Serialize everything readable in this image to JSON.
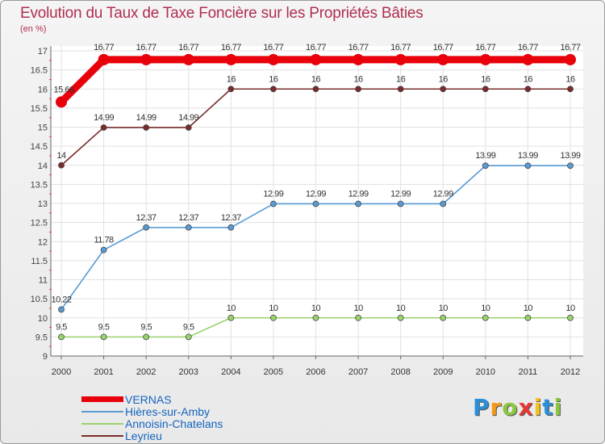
{
  "header": {
    "title": "Evolution du Taux de Taxe Foncière sur les Propriétés Bâties",
    "unit": "(en %)"
  },
  "chart_data": {
    "type": "line",
    "title": "Evolution du Taux de Taxe Foncière sur les Propriétés Bâties",
    "ylabel": "(en %)",
    "xlabel": "",
    "x": [
      "2000",
      "2001",
      "2002",
      "2003",
      "2004",
      "2005",
      "2006",
      "2007",
      "2008",
      "2009",
      "2010",
      "2011",
      "2012"
    ],
    "ylim": [
      9,
      17
    ],
    "yticks": [
      "9",
      "9.5",
      "10",
      "10.5",
      "11",
      "11.5",
      "12",
      "12.5",
      "13",
      "13.5",
      "14",
      "14.5",
      "15",
      "15.5",
      "16",
      "16.5",
      "17"
    ],
    "series": [
      {
        "name": "VERNAS",
        "color": "#e8000b",
        "values": [
          15.66,
          16.77,
          16.77,
          16.77,
          16.77,
          16.77,
          16.77,
          16.77,
          16.77,
          16.77,
          16.77,
          16.77,
          16.77
        ],
        "labels": [
          "15.66",
          "16.77",
          "16.77",
          "16.77",
          "16.77",
          "16.77",
          "16.77",
          "16.77",
          "16.77",
          "16.77",
          "16.77",
          "16.77",
          "16.77"
        ]
      },
      {
        "name": "Hières-sur-Amby",
        "color": "#5b9bd5",
        "values": [
          10.22,
          11.78,
          12.37,
          12.37,
          12.37,
          12.99,
          12.99,
          12.99,
          12.99,
          12.99,
          13.99,
          13.99,
          13.99
        ],
        "labels": [
          "10.22",
          "11.78",
          "12.37",
          "12.37",
          "12.37",
          "12.99",
          "12.99",
          "12.99",
          "12.99",
          "12.99",
          "13.99",
          "13.99",
          "13.99"
        ]
      },
      {
        "name": "Annoisin-Chatelans",
        "color": "#9ad36b",
        "values": [
          9.5,
          9.5,
          9.5,
          9.5,
          10,
          10,
          10,
          10,
          10,
          10,
          10,
          10,
          10
        ],
        "labels": [
          "9.5",
          "9.5",
          "9.5",
          "9.5",
          "10",
          "10",
          "10",
          "10",
          "10",
          "10",
          "10",
          "10",
          "10"
        ]
      },
      {
        "name": "Leyrieu",
        "color": "#7a2b2b",
        "values": [
          14,
          14.99,
          14.99,
          14.99,
          16,
          16,
          16,
          16,
          16,
          16,
          16,
          16,
          16
        ],
        "labels": [
          "14",
          "14.99",
          "14.99",
          "14.99",
          "16",
          "16",
          "16",
          "16",
          "16",
          "16",
          "16",
          "16",
          "16"
        ]
      }
    ],
    "grid": true,
    "legend": "bottom-left"
  },
  "legend": [
    {
      "label": "VERNAS",
      "color": "#e8000b"
    },
    {
      "label": "Hières-sur-Amby",
      "color": "#5b9bd5"
    },
    {
      "label": "Annoisin-Chatelans",
      "color": "#9ad36b"
    },
    {
      "label": "Leyrieu",
      "color": "#7a2b2b"
    }
  ],
  "logo": {
    "letters": [
      "P",
      "r",
      "o",
      "x",
      "i",
      "t",
      "i"
    ],
    "colors": [
      "#2b8fd6",
      "#f29a1a",
      "#8cc63f",
      "#e53935",
      "#f7c21a",
      "#2b8fd6",
      "#8cc63f"
    ]
  }
}
